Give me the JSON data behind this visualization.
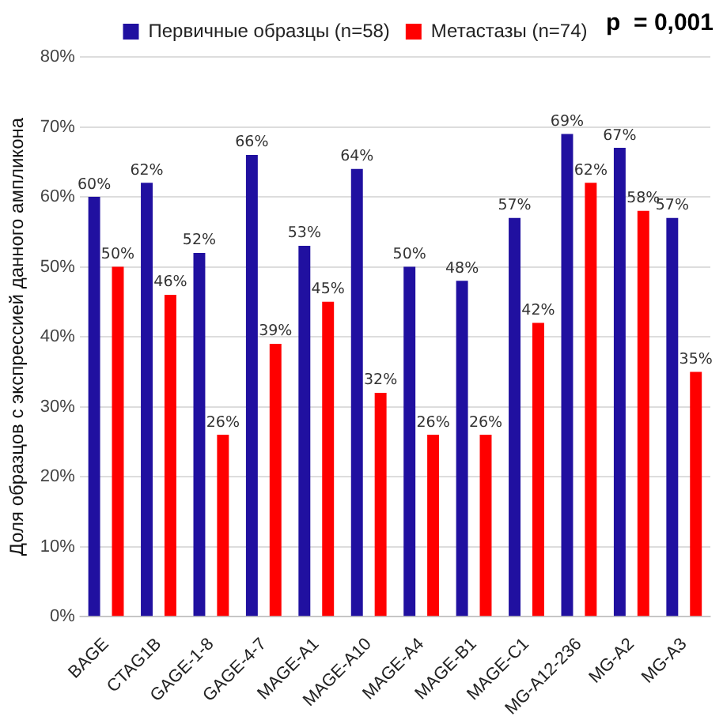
{
  "chart_data": {
    "type": "bar",
    "ylabel": "Доля образцов с экспрессией данного ампликона",
    "categories": [
      "BAGE",
      "CTAG1B",
      "GAGE-1-8",
      "GAGE-4-7",
      "MAGE-A1",
      "MAGE-A10",
      "MAGE-A4",
      "MAGE-B1",
      "MAGE-C1",
      "MG-A12-236",
      "MG-A2",
      "MG-A3"
    ],
    "series": [
      {
        "name": "Первичные образцы (n=58)",
        "color": "#2010a0",
        "values": [
          60,
          62,
          52,
          66,
          53,
          64,
          50,
          48,
          57,
          69,
          67,
          57
        ],
        "value_labels": [
          "60%",
          "62%",
          "52%",
          "66%",
          "53%",
          "64%",
          "50%",
          "48%",
          "57%",
          "69%",
          "67%",
          "57%"
        ]
      },
      {
        "name": "Метастазы (n=74)",
        "color": "#ff0000",
        "values": [
          50,
          46,
          26,
          39,
          45,
          32,
          26,
          26,
          42,
          62,
          58,
          35
        ],
        "value_labels": [
          "50%",
          "46%",
          "26%",
          "39%",
          "45%",
          "32%",
          "26%",
          "26%",
          "42%",
          "62%",
          "58%",
          "35%"
        ]
      }
    ],
    "ylim": [
      0,
      80
    ],
    "yticks": [
      {
        "value": 0,
        "label": "0%"
      },
      {
        "value": 10,
        "label": "10%"
      },
      {
        "value": 20,
        "label": "20%"
      },
      {
        "value": 30,
        "label": "30%"
      },
      {
        "value": 40,
        "label": "40%"
      },
      {
        "value": 50,
        "label": "50%"
      },
      {
        "value": 60,
        "label": "60%"
      },
      {
        "value": 70,
        "label": "70%"
      },
      {
        "value": 80,
        "label": "80%"
      }
    ],
    "grid": "y",
    "legend": "top",
    "annotations": [
      "p  = 0,001"
    ]
  }
}
